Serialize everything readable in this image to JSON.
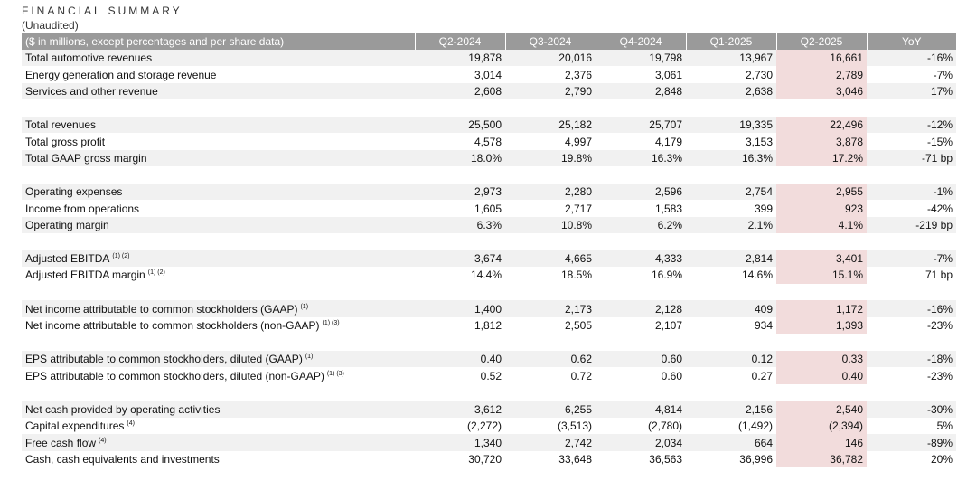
{
  "title": "FINANCIAL SUMMARY",
  "subtitle": "(Unaudited)",
  "header": [
    "($ in millions, except percentages and per share data)",
    "Q2-2024",
    "Q3-2024",
    "Q4-2024",
    "Q1-2025",
    "Q2-2025",
    "YoY"
  ],
  "groups": [
    [
      {
        "label": "Total automotive revenues",
        "sup": "",
        "values": [
          "19,878",
          "20,016",
          "19,798",
          "13,967",
          "16,661",
          "-16%"
        ]
      },
      {
        "label": "Energy generation and storage revenue",
        "sup": "",
        "values": [
          "3,014",
          "2,376",
          "3,061",
          "2,730",
          "2,789",
          "-7%"
        ]
      },
      {
        "label": "Services and other revenue",
        "sup": "",
        "values": [
          "2,608",
          "2,790",
          "2,848",
          "2,638",
          "3,046",
          "17%"
        ]
      }
    ],
    [
      {
        "label": "Total revenues",
        "sup": "",
        "values": [
          "25,500",
          "25,182",
          "25,707",
          "19,335",
          "22,496",
          "-12%"
        ]
      },
      {
        "label": "Total gross profit",
        "sup": "",
        "values": [
          "4,578",
          "4,997",
          "4,179",
          "3,153",
          "3,878",
          "-15%"
        ]
      },
      {
        "label": "Total GAAP gross margin",
        "sup": "",
        "values": [
          "18.0%",
          "19.8%",
          "16.3%",
          "16.3%",
          "17.2%",
          "-71 bp"
        ]
      }
    ],
    [
      {
        "label": "Operating expenses",
        "sup": "",
        "values": [
          "2,973",
          "2,280",
          "2,596",
          "2,754",
          "2,955",
          "-1%"
        ]
      },
      {
        "label": "Income from operations",
        "sup": "",
        "values": [
          "1,605",
          "2,717",
          "1,583",
          "399",
          "923",
          "-42%"
        ]
      },
      {
        "label": "Operating margin",
        "sup": "",
        "values": [
          "6.3%",
          "10.8%",
          "6.2%",
          "2.1%",
          "4.1%",
          "-219 bp"
        ]
      }
    ],
    [
      {
        "label": "Adjusted EBITDA",
        "sup": "(1) (2)",
        "values": [
          "3,674",
          "4,665",
          "4,333",
          "2,814",
          "3,401",
          "-7%"
        ]
      },
      {
        "label": "Adjusted EBITDA margin",
        "sup": "(1) (2)",
        "values": [
          "14.4%",
          "18.5%",
          "16.9%",
          "14.6%",
          "15.1%",
          "71 bp"
        ]
      }
    ],
    [
      {
        "label": "Net income attributable to common stockholders (GAAP)",
        "sup": "(1)",
        "values": [
          "1,400",
          "2,173",
          "2,128",
          "409",
          "1,172",
          "-16%"
        ]
      },
      {
        "label": "Net income attributable to common stockholders (non-GAAP)",
        "sup": "(1) (3)",
        "values": [
          "1,812",
          "2,505",
          "2,107",
          "934",
          "1,393",
          "-23%"
        ]
      }
    ],
    [
      {
        "label": "EPS attributable to common stockholders, diluted (GAAP)",
        "sup": "(1)",
        "values": [
          "0.40",
          "0.62",
          "0.60",
          "0.12",
          "0.33",
          "-18%"
        ]
      },
      {
        "label": "EPS attributable to common stockholders, diluted (non-GAAP)",
        "sup": "(1) (3)",
        "values": [
          "0.52",
          "0.72",
          "0.60",
          "0.27",
          "0.40",
          "-23%"
        ]
      }
    ],
    [
      {
        "label": "Net cash provided by operating activities",
        "sup": "",
        "values": [
          "3,612",
          "6,255",
          "4,814",
          "2,156",
          "2,540",
          "-30%"
        ]
      },
      {
        "label": "Capital expenditures",
        "sup": "(4)",
        "values": [
          "(2,272)",
          "(3,513)",
          "(2,780)",
          "(1,492)",
          "(2,394)",
          "5%"
        ]
      },
      {
        "label": "Free cash flow",
        "sup": "(4)",
        "values": [
          "1,340",
          "2,742",
          "2,034",
          "664",
          "146",
          "-89%"
        ]
      },
      {
        "label": "Cash, cash equivalents and investments",
        "sup": "",
        "values": [
          "30,720",
          "33,648",
          "36,563",
          "36,996",
          "36,782",
          "20%"
        ]
      }
    ]
  ]
}
